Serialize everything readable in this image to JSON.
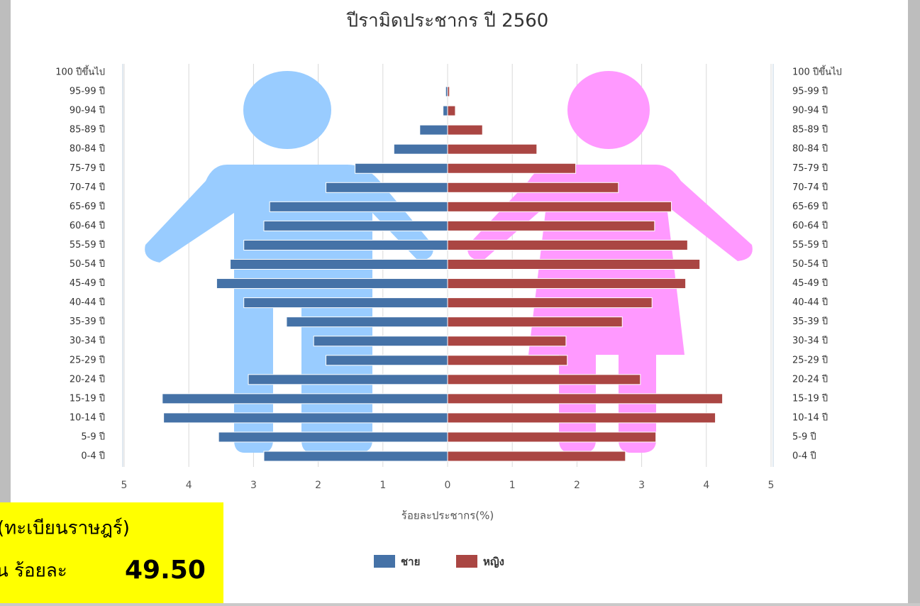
{
  "chart_data": {
    "type": "population-pyramid",
    "title": "ปีรามิดประชากร ปี 2560",
    "categories": [
      "0-4 ปี",
      "5-9 ปี",
      "10-14 ปี",
      "15-19 ปี",
      "20-24 ปี",
      "25-29 ปี",
      "30-34 ปี",
      "35-39 ปี",
      "40-44 ปี",
      "45-49 ปี",
      "50-54 ปี",
      "55-59 ปี",
      "60-64 ปี",
      "65-69 ปี",
      "70-74 ปี",
      "75-79 ปี",
      "80-84 ปี",
      "85-89 ปี",
      "90-94 ปี",
      "95-99 ปี",
      "100 ปีขึ้นไป"
    ],
    "series": [
      {
        "name": "ชาย",
        "color": "#4572a7",
        "side": "left",
        "values": [
          2.84,
          3.54,
          4.39,
          4.41,
          3.08,
          1.88,
          2.07,
          2.49,
          3.15,
          3.57,
          3.36,
          3.15,
          2.84,
          2.75,
          1.88,
          1.43,
          0.83,
          0.43,
          0.07,
          0.03,
          0
        ]
      },
      {
        "name": "หญิง",
        "color": "#aa4643",
        "side": "right",
        "values": [
          2.75,
          3.22,
          4.14,
          4.25,
          2.98,
          1.85,
          1.83,
          2.7,
          3.16,
          3.68,
          3.9,
          3.71,
          3.2,
          3.46,
          2.64,
          1.98,
          1.38,
          0.54,
          0.12,
          0.03,
          0
        ]
      }
    ],
    "xlabel": "ร้อยละประชากร(%)",
    "xlim": [
      0,
      5
    ],
    "xticks": [
      0,
      1,
      2,
      3,
      4,
      5
    ],
    "grid": true
  },
  "overlay": {
    "lines": [
      "(ทะเบียนราษฎร์)",
      "น ร้อยละ"
    ],
    "value": "49.50"
  }
}
